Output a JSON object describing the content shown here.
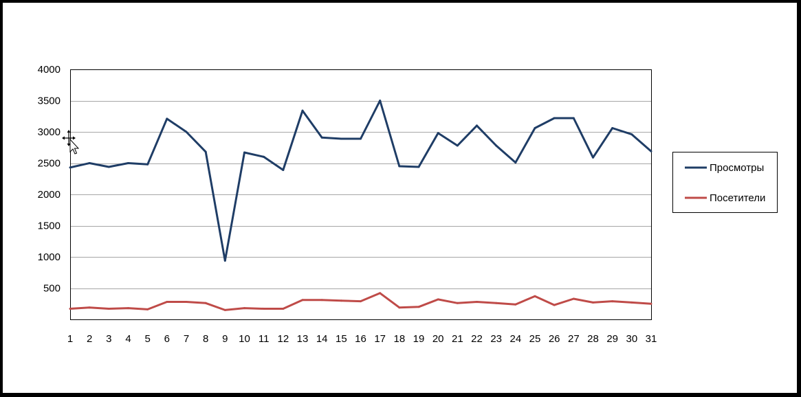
{
  "chart_data": {
    "type": "line",
    "x": [
      1,
      2,
      3,
      4,
      5,
      6,
      7,
      8,
      9,
      10,
      11,
      12,
      13,
      14,
      15,
      16,
      17,
      18,
      19,
      20,
      21,
      22,
      23,
      24,
      25,
      26,
      27,
      28,
      29,
      30,
      31
    ],
    "series": [
      {
        "name": "Просмотры",
        "color": "#1f3d66",
        "values": [
          2430,
          2500,
          2440,
          2500,
          2480,
          3210,
          3000,
          2680,
          940,
          2670,
          2600,
          2390,
          3340,
          2910,
          2890,
          2890,
          3500,
          2450,
          2440,
          2980,
          2780,
          3100,
          2780,
          2510,
          3060,
          3220,
          3220,
          2590,
          3060,
          2960,
          2690
        ]
      },
      {
        "name": "Посетители",
        "color": "#bf4b48",
        "values": [
          170,
          190,
          170,
          180,
          160,
          280,
          280,
          260,
          150,
          180,
          170,
          170,
          310,
          310,
          300,
          290,
          420,
          190,
          200,
          320,
          260,
          280,
          260,
          240,
          370,
          230,
          330,
          270,
          290,
          270,
          250
        ]
      }
    ],
    "ylim": [
      0,
      4000
    ],
    "yticks": [
      500,
      1000,
      1500,
      2000,
      2500,
      3000,
      3500,
      4000
    ],
    "grid": true,
    "legend_position": "right"
  }
}
